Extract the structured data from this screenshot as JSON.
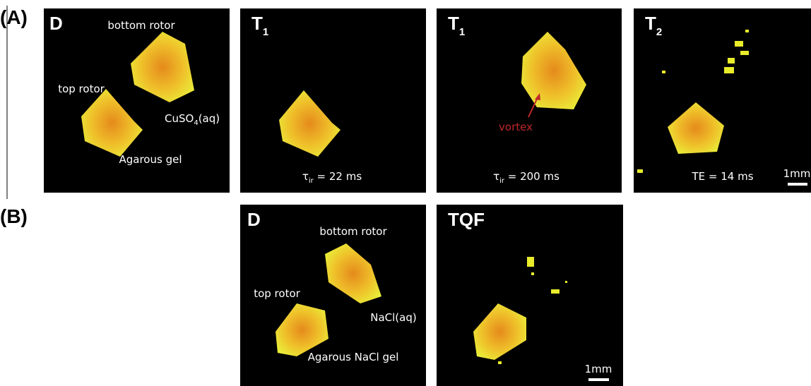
{
  "labels": {
    "a": "(A)",
    "b": "(B)"
  },
  "panels": [
    {
      "title": {
        "main": "D"
      },
      "annotations": [
        "bottom rotor",
        "top rotor",
        "Agarous gel"
      ],
      "solution": {
        "main": "CuSO",
        "sub": "4",
        "tail": "(aq)"
      }
    },
    {
      "title": {
        "main": "T",
        "sub": "1"
      },
      "parameter": {
        "symbol": "τ",
        "sub": "ir",
        "tail": " = 22 ms"
      }
    },
    {
      "title": {
        "main": "T",
        "sub": "1"
      },
      "parameter": {
        "symbol": "τ",
        "sub": "ir",
        "tail": " = 200 ms"
      },
      "annotations": [
        "vortex"
      ]
    },
    {
      "title": {
        "main": "T",
        "sub": "2"
      },
      "parameter": {
        "tail": "TE = 14 ms"
      },
      "scale_bar": "1mm"
    },
    {
      "title": {
        "main": "D"
      },
      "annotations": [
        "bottom rotor",
        "top rotor",
        "NaCl(aq)",
        "Agarous NaCl gel"
      ]
    },
    {
      "title": {
        "main": "TQF"
      },
      "scale_bar": "1mm"
    }
  ]
}
